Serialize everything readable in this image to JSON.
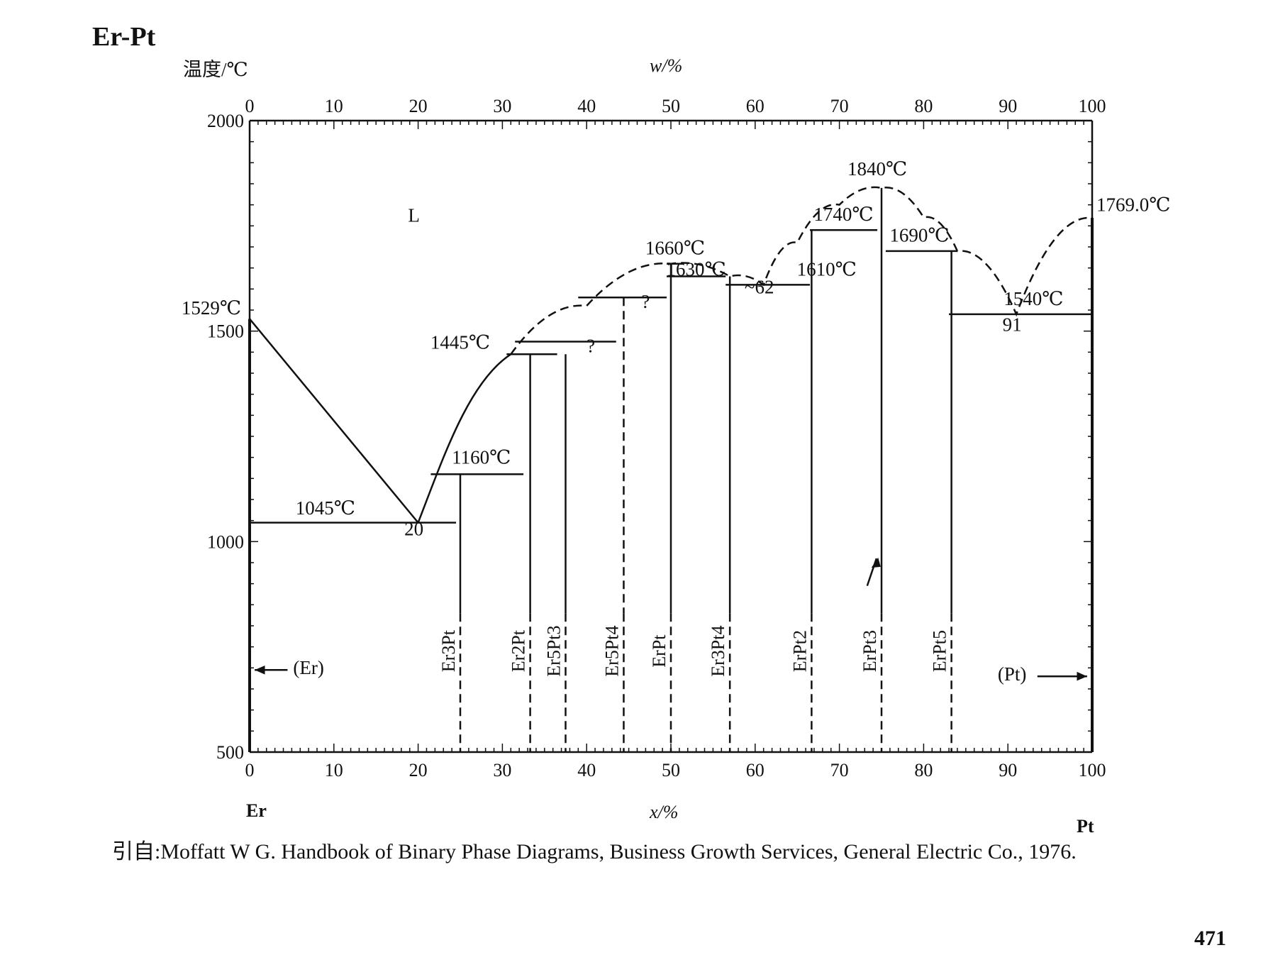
{
  "title": "Er-Pt",
  "ylabel": "温度/℃",
  "top_axis_label": "w/%",
  "x_axis_label": "x/%",
  "left_element": "Er",
  "right_element": "Pt",
  "citation": "引自:Moffatt W G. Handbook of Binary Phase Diagrams, Business Growth Services, General Electric Co., 1976.",
  "page_number": "471",
  "chart_data": {
    "type": "phase-diagram",
    "x_unit": "x/% (atomic percent Pt)",
    "w_unit": "w/% (mass percent Pt)",
    "ylim": [
      500,
      2000
    ],
    "xlim": [
      0,
      100
    ],
    "y_ticks": [
      500,
      1000,
      1500,
      2000
    ],
    "x_ticks": [
      0,
      10,
      20,
      30,
      40,
      50,
      60,
      70,
      80,
      90,
      100
    ],
    "w_ticks": [
      0,
      10,
      20,
      30,
      40,
      50,
      60,
      70,
      80,
      90,
      100
    ],
    "liquidus_solid": [
      [
        0,
        1529
      ],
      [
        20,
        1045
      ]
    ],
    "liquidus_solid_2": [
      [
        20,
        1045
      ],
      [
        22,
        1160
      ],
      [
        26,
        1300
      ],
      [
        31,
        1445
      ]
    ],
    "liquidus_dashed": [
      [
        31,
        1445
      ],
      [
        40,
        1560
      ],
      [
        50,
        1660
      ],
      [
        57,
        1630
      ],
      [
        61,
        1610
      ],
      [
        65,
        1710
      ],
      [
        70,
        1800
      ],
      [
        75,
        1840
      ],
      [
        80,
        1770
      ],
      [
        84,
        1690
      ],
      [
        91,
        1540
      ],
      [
        100,
        1769
      ]
    ],
    "invariants": [
      {
        "label": "1045℃",
        "temperature": 1045,
        "x_from": 0,
        "x_to": 24.5
      },
      {
        "label": "1160℃",
        "temperature": 1160,
        "x_from": 21.5,
        "x_to": 32.5
      },
      {
        "label": "1445℃",
        "temperature": 1445,
        "x_from": 30.5,
        "x_to": 36.5
      },
      {
        "label": "",
        "temperature": 1475,
        "x_from": 31.5,
        "x_to": 43.5
      },
      {
        "label": "",
        "temperature": 1580,
        "x_from": 39,
        "x_to": 49.5
      },
      {
        "label": "1660℃",
        "temperature": 1660,
        "x_from": 49.5,
        "x_to": 51.5
      },
      {
        "label": "1630℃",
        "temperature": 1630,
        "x_from": 49.5,
        "x_to": 56.5
      },
      {
        "label": "1610℃",
        "temperature": 1610,
        "x_from": 56.5,
        "x_to": 66.5
      },
      {
        "label": "1740℃",
        "temperature": 1740,
        "x_from": 66.5,
        "x_to": 74.5
      },
      {
        "label": "1840℃",
        "temperature": 1840,
        "x_from": 75,
        "x_to": 75
      },
      {
        "label": "1690℃",
        "temperature": 1690,
        "x_from": 75.5,
        "x_to": 84
      },
      {
        "label": "1540℃",
        "temperature": 1540,
        "x_from": 83,
        "x_to": 100
      },
      {
        "label": "1769.0℃",
        "temperature": 1769,
        "x_from": 100,
        "x_to": 100
      },
      {
        "label": "1529℃",
        "temperature": 1529,
        "x_from": 0,
        "x_to": 0
      }
    ],
    "compositions": [
      {
        "label": "20",
        "x": 20,
        "temperature": 1045
      },
      {
        "label": "~62",
        "x": 61,
        "temperature": 1610
      },
      {
        "label": "91",
        "x": 91,
        "temperature": 1540
      }
    ],
    "compounds": [
      {
        "label": "Er3Pt",
        "x": 25
      },
      {
        "label": "Er2Pt",
        "x": 33.3
      },
      {
        "label": "Er5Pt3",
        "x": 37.5
      },
      {
        "label": "Er5Pt4",
        "x": 44.4
      },
      {
        "label": "ErPt",
        "x": 50
      },
      {
        "label": "Er3Pt4",
        "x": 57
      },
      {
        "label": "ErPt2",
        "x": 66.7
      },
      {
        "label": "ErPt3",
        "x": 75
      },
      {
        "label": "ErPt5",
        "x": 83.3
      }
    ],
    "phase_labels": {
      "liquid": "L",
      "er_solid": "(Er)",
      "pt_solid": "(Pt)",
      "uncertain": "?"
    }
  }
}
